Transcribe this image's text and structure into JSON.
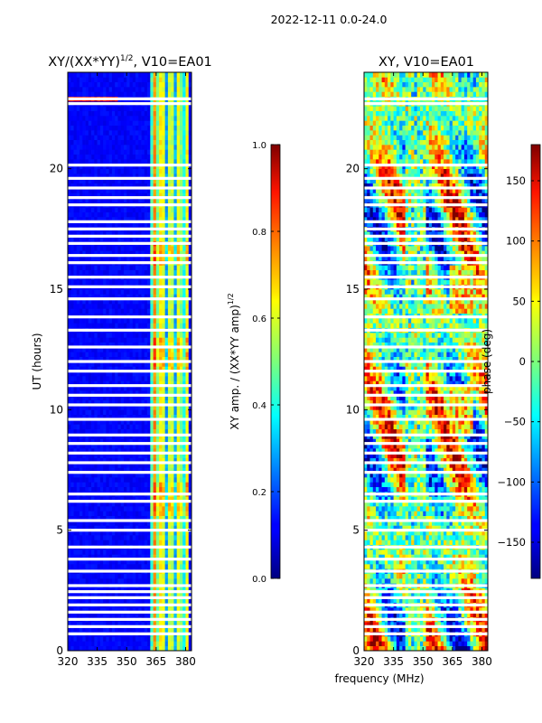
{
  "suptitle": "2022-12-11 0.0-24.0",
  "colors": {
    "background": "#ffffff",
    "axis": "#000000",
    "gap": "#ffffff"
  },
  "chart_data": [
    {
      "type": "heatmap",
      "title": "XY/(XX*YY)",
      "title_superscript": "1/2",
      "title_suffix": ", V10=EA01",
      "xlabel": "",
      "ylabel": "UT (hours)",
      "xlim": [
        320,
        383
      ],
      "ylim": [
        0,
        24
      ],
      "xticks": [
        "320",
        "335",
        "350",
        "365",
        "380"
      ],
      "yticks": [
        "0",
        "5",
        "10",
        "15",
        "20"
      ],
      "colormap": "jet",
      "colorbar": {
        "label": "XY amp. / (XX*YY amp)",
        "label_superscript": "1/2",
        "range": [
          0.0,
          1.0
        ],
        "ticks": [
          "0.0",
          "0.2",
          "0.4",
          "0.6",
          "0.8",
          "1.0"
        ]
      }
    },
    {
      "type": "heatmap",
      "title": "XY, V10=EA01",
      "xlabel": "frequency (MHz)",
      "ylabel": "",
      "xlim": [
        320,
        383
      ],
      "ylim": [
        0,
        24
      ],
      "xticks": [
        "320",
        "335",
        "350",
        "365",
        "380"
      ],
      "yticks": [
        "0",
        "5",
        "10",
        "15",
        "20"
      ],
      "colormap": "jet",
      "colorbar": {
        "label": "phase (deg)",
        "range": [
          -180,
          180
        ],
        "ticks": [
          "−150",
          "−100",
          "−50",
          "0",
          "50",
          "100",
          "150"
        ]
      }
    }
  ],
  "gaps_hours": [
    0.7,
    1.0,
    1.3,
    1.6,
    1.9,
    2.2,
    2.45,
    2.7,
    3.3,
    3.8,
    4.3,
    5.0,
    5.4,
    6.2,
    6.5,
    7.4,
    7.8,
    8.2,
    8.6,
    8.95,
    9.6,
    10.2,
    10.6,
    11.0,
    11.6,
    12.0,
    12.6,
    13.3,
    13.85,
    14.6,
    15.1,
    15.5,
    16.1,
    16.4,
    16.9,
    17.2,
    17.5,
    17.8,
    18.5,
    18.8,
    19.2,
    19.6,
    20.15,
    22.7,
    22.9
  ]
}
